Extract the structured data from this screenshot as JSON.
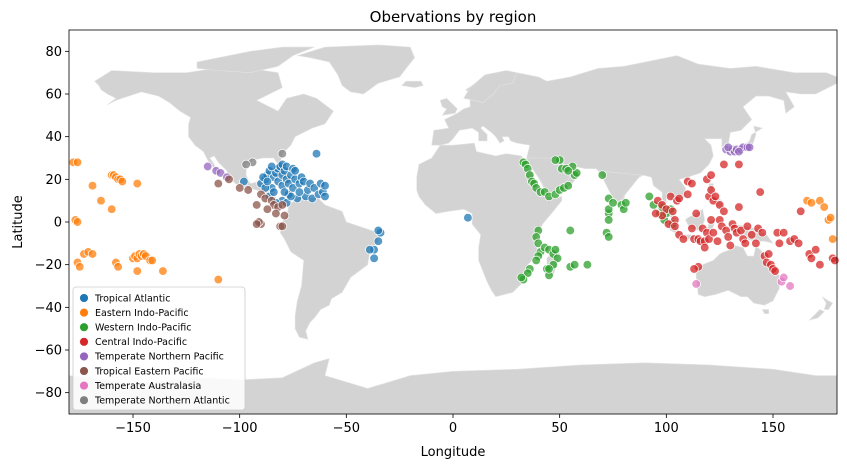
{
  "chart_data": {
    "type": "scatter",
    "title": "Obervations by region",
    "xlabel": "Longitude",
    "ylabel": "Latitude",
    "xlim": [
      -180,
      180
    ],
    "ylim": [
      -90,
      90
    ],
    "xticks": [
      -150,
      -100,
      -50,
      0,
      50,
      100,
      150
    ],
    "yticks": [
      80,
      60,
      40,
      20,
      0,
      -20,
      -40,
      -60,
      -80
    ],
    "background": "world land map (light grey)",
    "legend_position": "lower-left",
    "marker_alpha": 0.75,
    "series": [
      {
        "name": "Tropical Atlantic",
        "color": "#1f77b4",
        "points": [
          [
            -90,
            18
          ],
          [
            -88,
            20
          ],
          [
            -87,
            22
          ],
          [
            -86,
            24
          ],
          [
            -85,
            16
          ],
          [
            -84,
            21
          ],
          [
            -83,
            23
          ],
          [
            -82,
            25
          ],
          [
            -82,
            19
          ],
          [
            -81,
            26
          ],
          [
            -80,
            27
          ],
          [
            -80,
            22
          ],
          [
            -80,
            17
          ],
          [
            -79,
            24
          ],
          [
            -78,
            26
          ],
          [
            -78,
            20
          ],
          [
            -77,
            18
          ],
          [
            -77,
            13
          ],
          [
            -76,
            22
          ],
          [
            -75,
            25
          ],
          [
            -75,
            16
          ],
          [
            -74,
            20
          ],
          [
            -73,
            11
          ],
          [
            -72,
            18
          ],
          [
            -71,
            21
          ],
          [
            -70,
            19
          ],
          [
            -69,
            12
          ],
          [
            -68,
            15
          ],
          [
            -67,
            18
          ],
          [
            -66,
            11
          ],
          [
            -65,
            16
          ],
          [
            -64,
            32
          ],
          [
            -63,
            13
          ],
          [
            -62,
            18
          ],
          [
            -61,
            14
          ],
          [
            -60,
            17
          ],
          [
            -60,
            12
          ],
          [
            -86,
            12
          ],
          [
            -84,
            14
          ],
          [
            -80,
            10
          ],
          [
            -83,
            9
          ],
          [
            -78,
            9
          ],
          [
            -88,
            16
          ],
          [
            -89,
            21
          ],
          [
            -87,
            19
          ],
          [
            -76,
            12
          ],
          [
            -72,
            14
          ],
          [
            -79,
            14
          ],
          [
            -85,
            26
          ],
          [
            -74,
            24
          ],
          [
            -98,
            19
          ],
          [
            -37,
            -13
          ],
          [
            -37,
            -17
          ],
          [
            -35,
            -9
          ],
          [
            -34,
            -5
          ],
          [
            -35,
            -4
          ],
          [
            -39,
            -13
          ],
          [
            7,
            2
          ]
        ]
      },
      {
        "name": "Eastern Indo-Pacific",
        "color": "#ff7f0e",
        "points": [
          [
            -178,
            28
          ],
          [
            -176,
            28
          ],
          [
            -177,
            1
          ],
          [
            -176,
            0
          ],
          [
            -176,
            -19
          ],
          [
            -175,
            -21
          ],
          [
            -173,
            -15
          ],
          [
            -171,
            -14
          ],
          [
            -169,
            -15
          ],
          [
            -169,
            17
          ],
          [
            -160,
            22
          ],
          [
            -159,
            22
          ],
          [
            -158,
            21
          ],
          [
            -157,
            20
          ],
          [
            -156,
            20
          ],
          [
            -155,
            19
          ],
          [
            -148,
            18
          ],
          [
            -160,
            6
          ],
          [
            -158,
            -19
          ],
          [
            -157,
            -21
          ],
          [
            -150,
            -17
          ],
          [
            -149,
            -16
          ],
          [
            -148,
            -17
          ],
          [
            -147,
            -15
          ],
          [
            -146,
            -16
          ],
          [
            -145,
            -15
          ],
          [
            -144,
            -16
          ],
          [
            -142,
            -18
          ],
          [
            -141,
            -18
          ],
          [
            -136,
            -23
          ],
          [
            -148,
            -23
          ],
          [
            -165,
            10
          ],
          [
            -110,
            -27
          ],
          [
            172,
            10
          ],
          [
            174,
            7
          ],
          [
            176,
            1
          ],
          [
            177,
            2
          ],
          [
            178,
            -8
          ],
          [
            166,
            10
          ],
          [
            168,
            9
          ]
        ]
      },
      {
        "name": "Western Indo-Pacific",
        "color": "#2ca02c",
        "points": [
          [
            33,
            28
          ],
          [
            34,
            27
          ],
          [
            35,
            25
          ],
          [
            36,
            22
          ],
          [
            37,
            19
          ],
          [
            38,
            18
          ],
          [
            39,
            16
          ],
          [
            41,
            14
          ],
          [
            43,
            14
          ],
          [
            45,
            12
          ],
          [
            48,
            13
          ],
          [
            50,
            15
          ],
          [
            52,
            16
          ],
          [
            54,
            17
          ],
          [
            57,
            22
          ],
          [
            58,
            23
          ],
          [
            56,
            26
          ],
          [
            51,
            25
          ],
          [
            53,
            25
          ],
          [
            54,
            24
          ],
          [
            50,
            29
          ],
          [
            48,
            29
          ],
          [
            40,
            -4
          ],
          [
            39,
            -7
          ],
          [
            40,
            -10
          ],
          [
            41,
            -14
          ],
          [
            40,
            -16
          ],
          [
            39,
            -18
          ],
          [
            36,
            -22
          ],
          [
            35,
            -24
          ],
          [
            33,
            -27
          ],
          [
            32,
            -26
          ],
          [
            43,
            -12
          ],
          [
            45,
            -13
          ],
          [
            47,
            -15
          ],
          [
            48,
            -13
          ],
          [
            49,
            -17
          ],
          [
            47,
            -20
          ],
          [
            44,
            -22
          ],
          [
            45,
            -25
          ],
          [
            55,
            -4
          ],
          [
            55,
            -21
          ],
          [
            57,
            -20
          ],
          [
            63,
            -20
          ],
          [
            73,
            4
          ],
          [
            73,
            1
          ],
          [
            72,
            -5
          ],
          [
            73,
            -7
          ],
          [
            73,
            11
          ],
          [
            73,
            6
          ],
          [
            75,
            9
          ],
          [
            79,
            8
          ],
          [
            80,
            6
          ],
          [
            81,
            9
          ],
          [
            92,
            12
          ],
          [
            94,
            8
          ],
          [
            97,
            4
          ],
          [
            98,
            7
          ],
          [
            99,
            1
          ],
          [
            100,
            4
          ],
          [
            103,
            -1
          ],
          [
            102,
            6
          ],
          [
            70,
            22
          ],
          [
            45,
            -22
          ]
        ]
      },
      {
        "name": "Central Indo-Pacific",
        "color": "#d62728",
        "points": [
          [
            96,
            10
          ],
          [
            98,
            8
          ],
          [
            100,
            6
          ],
          [
            102,
            12
          ],
          [
            103,
            5
          ],
          [
            104,
            1
          ],
          [
            105,
            10
          ],
          [
            106,
            -6
          ],
          [
            108,
            -8
          ],
          [
            110,
            13
          ],
          [
            112,
            -3
          ],
          [
            113,
            -8
          ],
          [
            114,
            4
          ],
          [
            115,
            -8
          ],
          [
            116,
            -9
          ],
          [
            117,
            -3
          ],
          [
            118,
            -9
          ],
          [
            119,
            -5
          ],
          [
            120,
            12
          ],
          [
            120,
            -8
          ],
          [
            121,
            15
          ],
          [
            121,
            1
          ],
          [
            122,
            10
          ],
          [
            122,
            -5
          ],
          [
            123,
            12
          ],
          [
            124,
            -9
          ],
          [
            125,
            8
          ],
          [
            125,
            1
          ],
          [
            126,
            -2
          ],
          [
            127,
            5
          ],
          [
            128,
            -4
          ],
          [
            129,
            -7
          ],
          [
            130,
            -11
          ],
          [
            131,
            -1
          ],
          [
            132,
            -3
          ],
          [
            133,
            -5
          ],
          [
            134,
            7
          ],
          [
            135,
            -4
          ],
          [
            136,
            -8
          ],
          [
            137,
            -10
          ],
          [
            138,
            -2
          ],
          [
            140,
            -6
          ],
          [
            142,
            -10
          ],
          [
            143,
            -3
          ],
          [
            144,
            14
          ],
          [
            145,
            -5
          ],
          [
            146,
            -16
          ],
          [
            147,
            -19
          ],
          [
            148,
            -15
          ],
          [
            149,
            -20
          ],
          [
            150,
            -22
          ],
          [
            151,
            -23
          ],
          [
            152,
            -5
          ],
          [
            153,
            -10
          ],
          [
            155,
            -5
          ],
          [
            158,
            -9
          ],
          [
            160,
            -8
          ],
          [
            162,
            -10
          ],
          [
            163,
            5
          ],
          [
            167,
            -15
          ],
          [
            168,
            -17
          ],
          [
            170,
            -13
          ],
          [
            172,
            -20
          ],
          [
            178,
            -17
          ],
          [
            179,
            -18
          ],
          [
            115,
            -21
          ],
          [
            113,
            -22
          ],
          [
            118,
            -12
          ],
          [
            119,
            20
          ],
          [
            121,
            22
          ],
          [
            110,
            19
          ],
          [
            112,
            18
          ],
          [
            106,
            11
          ],
          [
            101,
            -1
          ],
          [
            104,
            -2
          ],
          [
            98,
            3
          ],
          [
            95,
            4
          ],
          [
            134,
            27
          ],
          [
            127,
            27
          ]
        ]
      },
      {
        "name": "Temperate Northern Pacific",
        "color": "#9467bd",
        "points": [
          [
            128,
            34
          ],
          [
            130,
            33
          ],
          [
            131,
            34
          ],
          [
            132,
            33
          ],
          [
            133,
            34
          ],
          [
            135,
            34
          ],
          [
            136,
            35
          ],
          [
            138,
            35
          ],
          [
            139,
            35
          ],
          [
            129,
            35
          ],
          [
            134,
            33
          ],
          [
            -115,
            26
          ],
          [
            -111,
            24
          ],
          [
            -109,
            23
          ],
          [
            -106,
            21
          ]
        ]
      },
      {
        "name": "Tropical Eastern Pacific",
        "color": "#8c564b",
        "points": [
          [
            -110,
            18
          ],
          [
            -105,
            20
          ],
          [
            -100,
            16
          ],
          [
            -96,
            15
          ],
          [
            -90,
            13
          ],
          [
            -88,
            11
          ],
          [
            -85,
            10
          ],
          [
            -84,
            8
          ],
          [
            -82,
            7
          ],
          [
            -80,
            8
          ],
          [
            -79,
            3
          ],
          [
            -81,
            -2
          ],
          [
            -90,
            -1
          ],
          [
            -91,
            0
          ],
          [
            -92,
            -1
          ],
          [
            -80,
            -2
          ],
          [
            -83,
            4
          ],
          [
            -87,
            6
          ],
          [
            -92,
            8
          ]
        ]
      },
      {
        "name": "Temperate Australasia",
        "color": "#e377c2",
        "points": [
          [
            114,
            -29
          ],
          [
            154,
            -28
          ],
          [
            155,
            -26
          ],
          [
            158,
            -30
          ]
        ]
      },
      {
        "name": "Temperate Northern Atlantic",
        "color": "#7f7f7f",
        "points": [
          [
            -94,
            28
          ],
          [
            -97,
            27
          ],
          [
            -80,
            32
          ]
        ]
      }
    ]
  }
}
